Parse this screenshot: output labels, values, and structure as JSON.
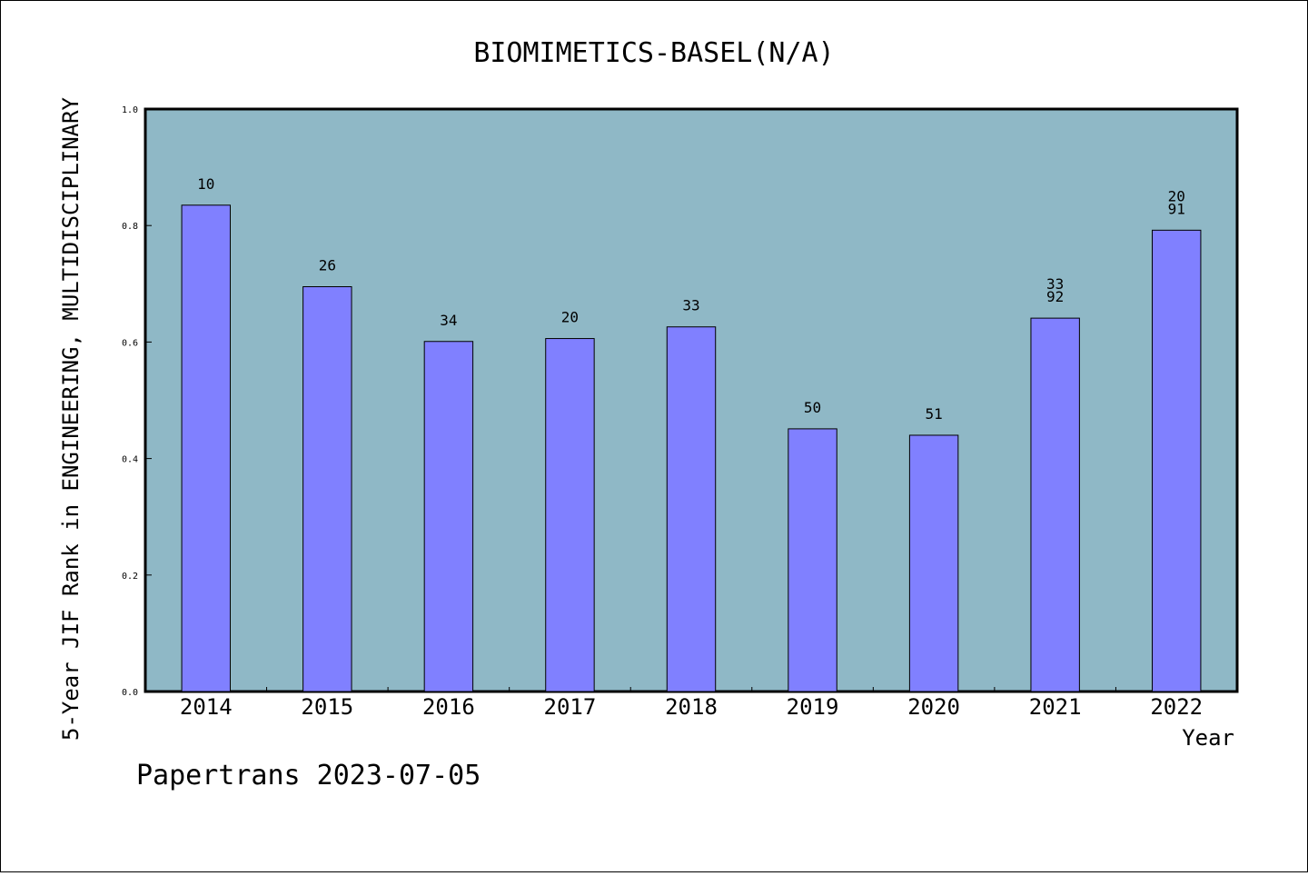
{
  "colors": {
    "plot_background": "#8fb8c6",
    "bar_fill": "#8080ff",
    "bar_stroke": "#000000",
    "page_background": "#ffffff"
  },
  "footer": "Papertrans 2023-07-05",
  "chart_data": {
    "type": "bar",
    "title": "BIOMIMETICS-BASEL(N/A)",
    "xlabel": "Year",
    "ylabel": "5-Year JIF Rank in ENGINEERING, MULTIDISCIPLINARY",
    "ylim": [
      0,
      1.0
    ],
    "yticks": [
      "0.0",
      "0.2",
      "0.4",
      "0.6",
      "0.8",
      "1.0"
    ],
    "grid": false,
    "legend": "none",
    "categories": [
      "2014",
      "2015",
      "2016",
      "2017",
      "2018",
      "2019",
      "2020",
      "2021",
      "2022"
    ],
    "values": [
      0.835,
      0.695,
      0.601,
      0.606,
      0.626,
      0.451,
      0.44,
      0.641,
      0.792
    ],
    "data_labels": [
      [
        "10"
      ],
      [
        "26"
      ],
      [
        "34"
      ],
      [
        "20"
      ],
      [
        "33"
      ],
      [
        "50"
      ],
      [
        "51"
      ],
      [
        "33",
        "92"
      ],
      [
        "20",
        "91"
      ]
    ]
  }
}
